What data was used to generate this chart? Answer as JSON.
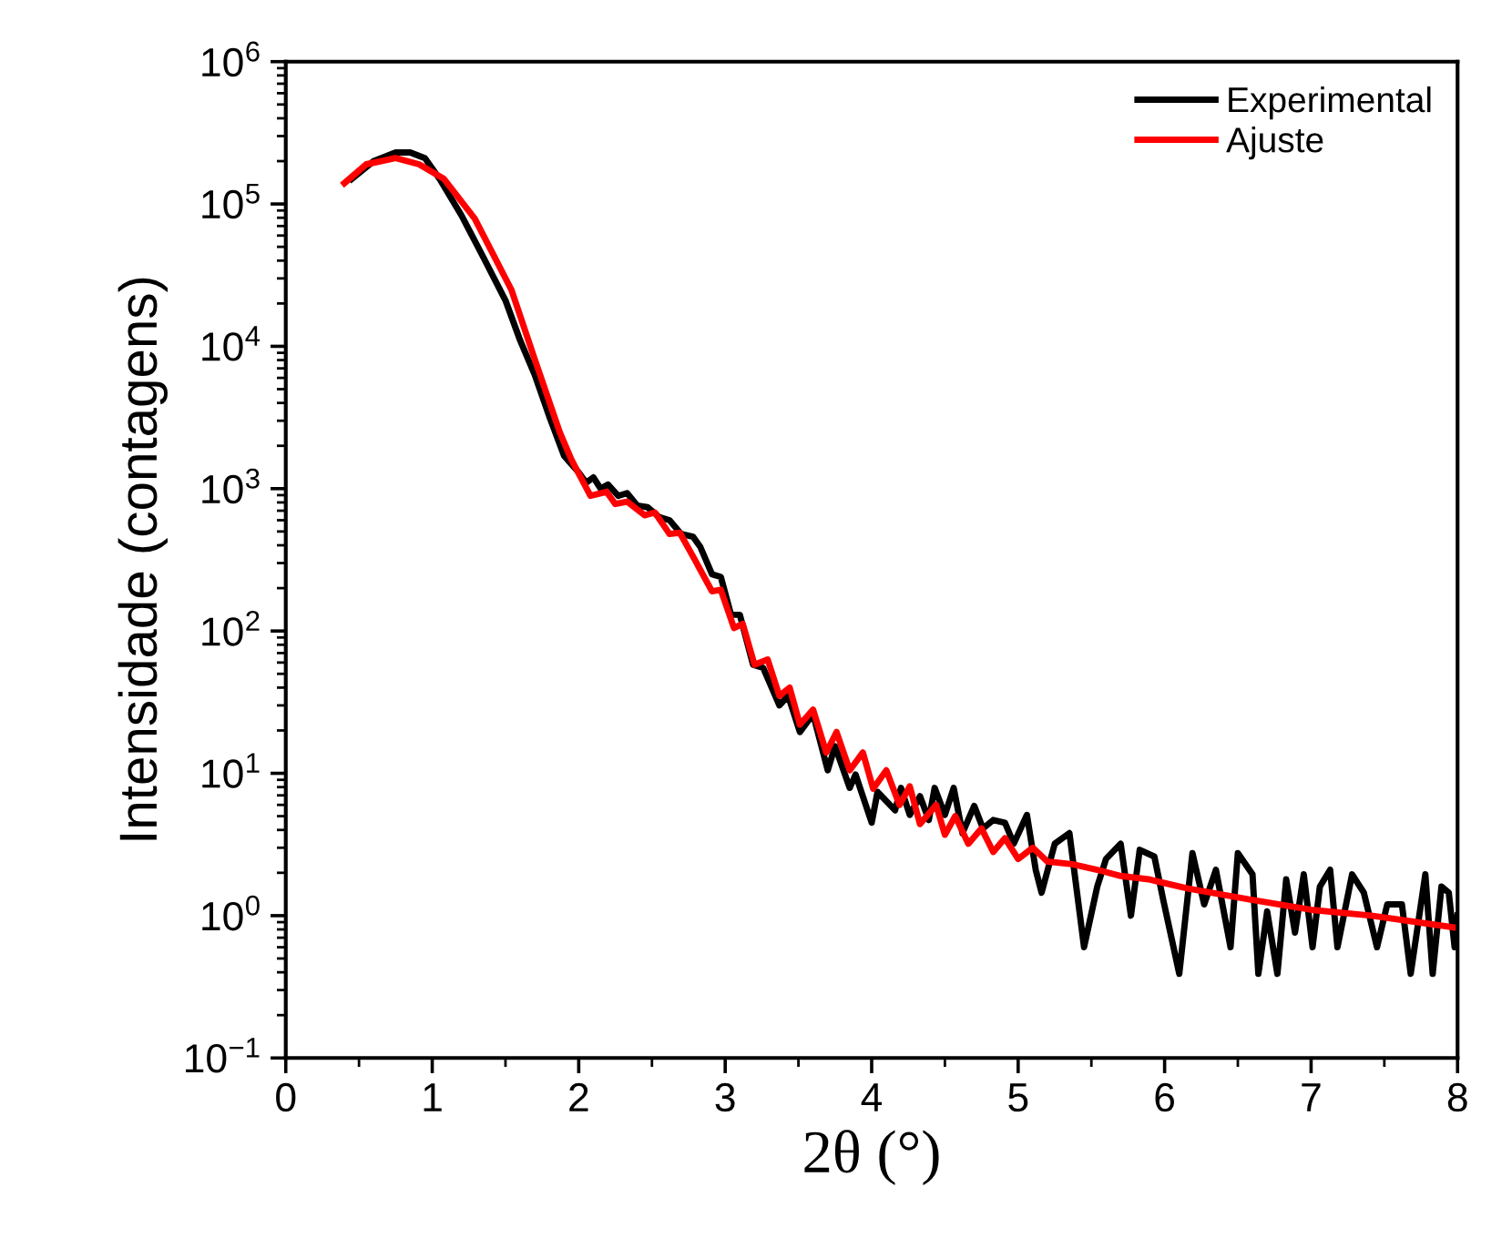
{
  "chart_data": {
    "type": "line",
    "xlabel": "2θ (°)",
    "ylabel": "Intensidade (contagens)",
    "log": "y",
    "legend": "top right",
    "grid": false,
    "marker": "none",
    "line_style": "solid",
    "xlim": [
      0,
      8
    ],
    "xticks": [
      0,
      1,
      2,
      3,
      4,
      5,
      6,
      7,
      8
    ],
    "ylim": [
      0.1,
      1000000
    ],
    "yticks": [
      {
        "value": 0.1,
        "label": "10$^{−1}$"
      },
      {
        "value": 1,
        "label": "10$^{0}$"
      },
      {
        "value": 10,
        "label": "10$^{1}$"
      },
      {
        "value": 100,
        "label": "10$^{2}$"
      },
      {
        "value": 1000,
        "label": "10$^{3}$"
      },
      {
        "value": 10000,
        "label": "10$^{4}$"
      },
      {
        "value": 100000,
        "label": "10$^{5}$"
      },
      {
        "value": 1000000,
        "label": "10$^{6}$"
      }
    ],
    "series": [
      {
        "name": "Experimental",
        "color": "#000000",
        "x": [
          0.45,
          0.6,
          0.75,
          0.85,
          0.95,
          1.05,
          1.2,
          1.35,
          1.5,
          1.6,
          1.7,
          1.8,
          1.9,
          2.0,
          2.05,
          2.1,
          2.15,
          2.2,
          2.27,
          2.33,
          2.4,
          2.47,
          2.55,
          2.62,
          2.7,
          2.78,
          2.83,
          2.91,
          2.97,
          3.04,
          3.1,
          3.19,
          3.26,
          3.37,
          3.43,
          3.51,
          3.6,
          3.7,
          3.75,
          3.85,
          3.89,
          4.0,
          4.04,
          4.16,
          4.2,
          4.26,
          4.33,
          4.39,
          4.43,
          4.5,
          4.56,
          4.62,
          4.7,
          4.76,
          4.83,
          4.91,
          4.97,
          5.06,
          5.12,
          5.16,
          5.25,
          5.35,
          5.45,
          5.54,
          5.6,
          5.7,
          5.77,
          5.83,
          5.93,
          5.99,
          6.1,
          6.19,
          6.27,
          6.35,
          6.45,
          6.5,
          6.6,
          6.64,
          6.7,
          6.77,
          6.83,
          6.89,
          6.95,
          7.01,
          7.06,
          7.13,
          7.18,
          7.28,
          7.36,
          7.45,
          7.52,
          7.62,
          7.68,
          7.78,
          7.83,
          7.89,
          7.94,
          7.98,
          8.0
        ],
        "values": [
          150000,
          200000,
          230000,
          230000,
          210000,
          150000,
          83000,
          42000,
          21000,
          11000,
          6300,
          3200,
          1700,
          1300,
          1100,
          1200,
          1000,
          1070,
          890,
          930,
          760,
          740,
          630,
          600,
          480,
          460,
          390,
          250,
          240,
          130,
          130,
          58,
          55,
          30,
          35,
          19.5,
          26,
          10.5,
          15.5,
          7.9,
          9.8,
          4.5,
          7.4,
          5.5,
          7.9,
          5.1,
          6.9,
          4.7,
          7.9,
          5.1,
          7.9,
          3.8,
          5.9,
          4.1,
          4.7,
          4.5,
          3.2,
          5.1,
          2.1,
          1.45,
          3.2,
          3.8,
          0.6,
          1.6,
          2.5,
          3.2,
          1.0,
          2.9,
          2.6,
          1.3,
          0.39,
          2.75,
          1.2,
          2.1,
          0.6,
          2.75,
          1.95,
          0.39,
          1.07,
          0.39,
          1.8,
          0.76,
          1.95,
          0.6,
          1.6,
          2.1,
          0.6,
          1.95,
          1.45,
          0.6,
          1.2,
          1.2,
          0.39,
          1.95,
          0.39,
          1.6,
          1.45,
          0.6,
          1.0
        ]
      },
      {
        "name": "Ajuste",
        "color": "#ff0000",
        "x": [
          0.4,
          0.55,
          0.75,
          0.91,
          1.08,
          1.29,
          1.54,
          1.7,
          1.87,
          1.95,
          2.08,
          2.19,
          2.25,
          2.33,
          2.45,
          2.52,
          2.62,
          2.69,
          2.79,
          2.91,
          2.97,
          3.06,
          3.12,
          3.2,
          3.29,
          3.37,
          3.44,
          3.51,
          3.6,
          3.69,
          3.76,
          3.85,
          3.94,
          4.01,
          4.1,
          4.19,
          4.26,
          4.33,
          4.44,
          4.5,
          4.57,
          4.66,
          4.75,
          4.83,
          4.91,
          5.0,
          5.1,
          5.2,
          5.37,
          5.54,
          5.7,
          5.89,
          6.16,
          6.58,
          7.0,
          7.41,
          8.0
        ],
        "values": [
          140000,
          190000,
          210000,
          190000,
          150000,
          79000,
          25000,
          8100,
          2500,
          1600,
          890,
          950,
          780,
          810,
          650,
          680,
          480,
          490,
          320,
          190,
          195,
          105,
          112,
          58,
          63,
          35,
          40,
          22,
          28,
          14,
          19.5,
          10.5,
          14,
          7.8,
          10.5,
          6.0,
          8.1,
          4.4,
          6.0,
          3.7,
          5.0,
          3.2,
          4.1,
          2.8,
          3.5,
          2.5,
          3.0,
          2.4,
          2.3,
          2.1,
          1.9,
          1.8,
          1.55,
          1.3,
          1.1,
          1.0,
          0.82
        ]
      }
    ]
  }
}
